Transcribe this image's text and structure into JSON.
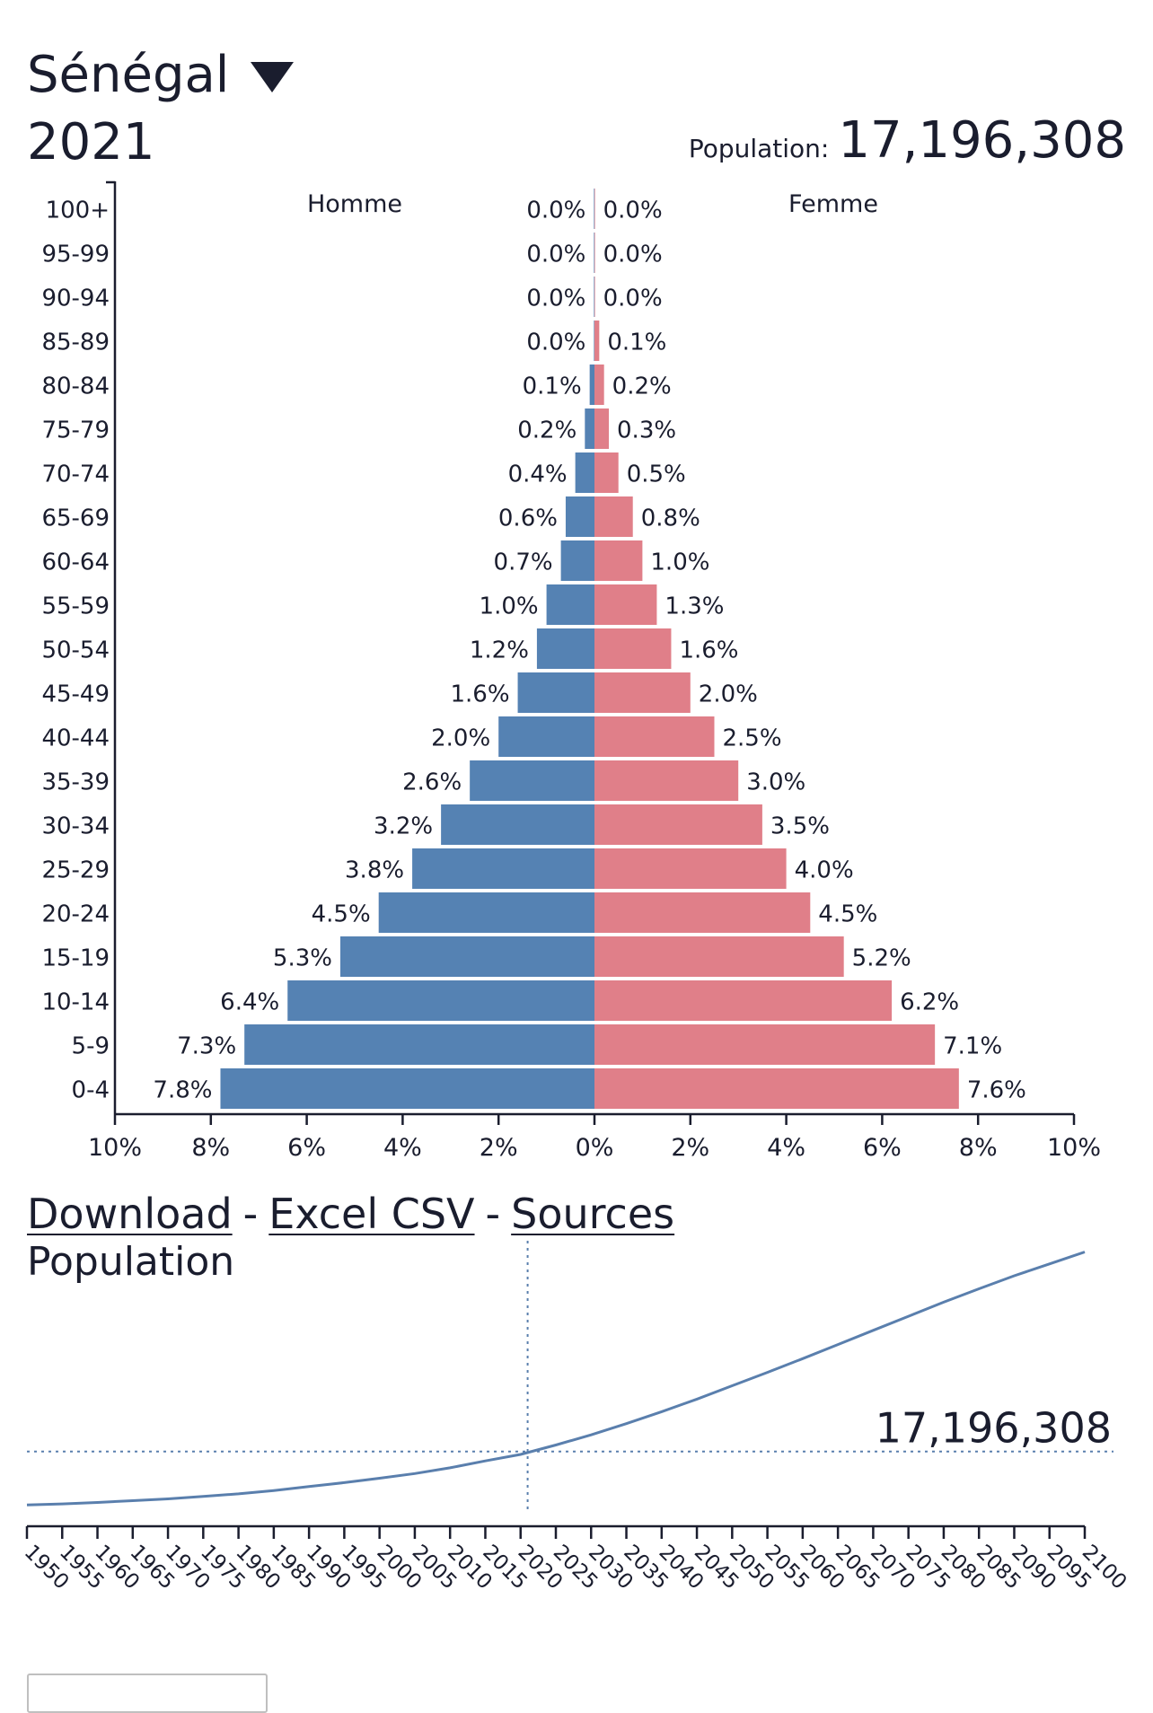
{
  "header": {
    "country": "Sénégal",
    "year": "2021",
    "population_label": "Population:",
    "population_value": "17,196,308"
  },
  "links": {
    "download": "Download",
    "excel_csv": "Excel CSV",
    "sources": "Sources",
    "separator": "-"
  },
  "line_title": "Population",
  "chart_data": [
    {
      "type": "bar",
      "subtype": "population-pyramid",
      "left_label": "Homme",
      "right_label": "Femme",
      "categories": [
        "100+",
        "95-99",
        "90-94",
        "85-89",
        "80-84",
        "75-79",
        "70-74",
        "65-69",
        "60-64",
        "55-59",
        "50-54",
        "45-49",
        "40-44",
        "35-39",
        "30-34",
        "25-29",
        "20-24",
        "15-19",
        "10-14",
        "5-9",
        "0-4"
      ],
      "series": [
        {
          "name": "Homme",
          "color": "#5582b3",
          "values": [
            0.0,
            0.0,
            0.0,
            0.0,
            0.1,
            0.2,
            0.4,
            0.6,
            0.7,
            1.0,
            1.2,
            1.6,
            2.0,
            2.6,
            3.2,
            3.8,
            4.5,
            5.3,
            6.4,
            7.3,
            7.8
          ]
        },
        {
          "name": "Femme",
          "color": "#e07f89",
          "values": [
            0.0,
            0.0,
            0.0,
            0.1,
            0.2,
            0.3,
            0.5,
            0.8,
            1.0,
            1.3,
            1.6,
            2.0,
            2.5,
            3.0,
            3.5,
            4.0,
            4.5,
            5.2,
            6.2,
            7.1,
            7.6
          ]
        }
      ],
      "x_ticks": [
        "10%",
        "8%",
        "6%",
        "4%",
        "2%",
        "0%",
        "2%",
        "4%",
        "6%",
        "8%",
        "10%"
      ],
      "xlim": [
        -10,
        10
      ]
    },
    {
      "type": "line",
      "title": "Population",
      "x": [
        1950,
        1955,
        1960,
        1965,
        1970,
        1975,
        1980,
        1985,
        1990,
        1995,
        2000,
        2005,
        2010,
        2015,
        2020,
        2025,
        2030,
        2035,
        2040,
        2045,
        2050,
        2055,
        2060,
        2065,
        2070,
        2075,
        2080,
        2085,
        2090,
        2095,
        2100
      ],
      "values_millions": [
        2.4,
        2.7,
        3.1,
        3.6,
        4.1,
        4.8,
        5.5,
        6.4,
        7.5,
        8.6,
        9.8,
        11.1,
        12.7,
        14.6,
        16.4,
        19.0,
        21.8,
        24.9,
        28.2,
        31.7,
        35.4,
        39.1,
        42.9,
        46.8,
        50.7,
        54.6,
        58.5,
        62.2,
        65.8,
        69.1,
        72.4
      ],
      "x_ticks": [
        "1950",
        "1955",
        "1960",
        "1965",
        "1970",
        "1975",
        "1980",
        "1985",
        "1990",
        "1995",
        "2000",
        "2005",
        "2010",
        "2015",
        "2020",
        "2025",
        "2030",
        "2035",
        "2040",
        "2045",
        "2050",
        "2055",
        "2060",
        "2065",
        "2070",
        "2075",
        "2080",
        "2085",
        "2090",
        "2095",
        "2100"
      ],
      "marker_year": 2021,
      "marker_value_millions": 17.2,
      "marker_label": "17,196,308",
      "line_color": "#5a7fad"
    }
  ]
}
